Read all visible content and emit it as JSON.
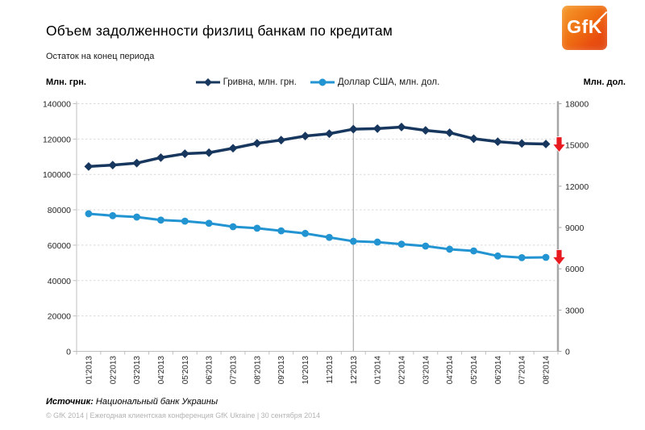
{
  "header": {
    "title": "Объем задолженности физлиц банкам по кредитам",
    "subtitle": "Остаток на конец периода",
    "logo_text": "GfK",
    "logo_color_from": "#F59B2D",
    "logo_color_to": "#E94E0F"
  },
  "axes": {
    "left_title": "Млн. грн.",
    "right_title": "Млн. дол."
  },
  "legend": {
    "grivna_label": "Гривна, млн. грн.",
    "dollar_label": "Доллар США, млн. дол."
  },
  "chart_data": {
    "type": "line",
    "title": "Объем задолженности физлиц банкам по кредитам",
    "subtitle": "Остаток на конец периода",
    "categories": [
      "01'2013",
      "02'2013",
      "03'2013",
      "04'2013",
      "05'2013",
      "06'2013",
      "07'2013",
      "08'2013",
      "09'2013",
      "10'2013",
      "11'2013",
      "12'2013",
      "01'2014",
      "02'2014",
      "03'2014",
      "04'2014",
      "05'2014",
      "06'2014",
      "07'2014",
      "08'2014"
    ],
    "series": [
      {
        "name": "Гривна, млн. грн.",
        "axis": "left",
        "color": "#17375E",
        "marker": "diamond",
        "values": [
          104500,
          105300,
          106400,
          109500,
          111700,
          112300,
          114800,
          117600,
          119400,
          121700,
          123000,
          125600,
          125900,
          126800,
          124900,
          123600,
          120200,
          118500,
          117500,
          117200
        ]
      },
      {
        "name": "Доллар США, млн. дол.",
        "axis": "right",
        "color": "#2394D2",
        "marker": "circle",
        "values": [
          10000,
          9860,
          9760,
          9540,
          9460,
          9310,
          9060,
          8950,
          8760,
          8570,
          8280,
          8000,
          7940,
          7790,
          7650,
          7420,
          7300,
          6930,
          6810,
          6830
        ]
      }
    ],
    "left_axis": {
      "label": "Млн. грн.",
      "min": 0,
      "max": 140000,
      "step": 20000
    },
    "right_axis": {
      "label": "Млн. дол.",
      "min": 0,
      "max": 18000,
      "step": 3000
    },
    "grid": "dashed-horizontal",
    "legend_position": "top-center",
    "divider_at": "12'2013",
    "annotations": [
      {
        "type": "down-arrow",
        "axis": "right",
        "value": 15000,
        "color": "#E8191F"
      },
      {
        "type": "down-arrow",
        "axis": "right",
        "value": 6800,
        "color": "#E8191F"
      }
    ]
  },
  "footer": {
    "source_label": "Источник:",
    "source_value": "Национальный банк Украины",
    "copyright": "© GfK 2014 | Ежегодная клиентская конференция GfK Ukraine | 30 сентября 2014"
  }
}
